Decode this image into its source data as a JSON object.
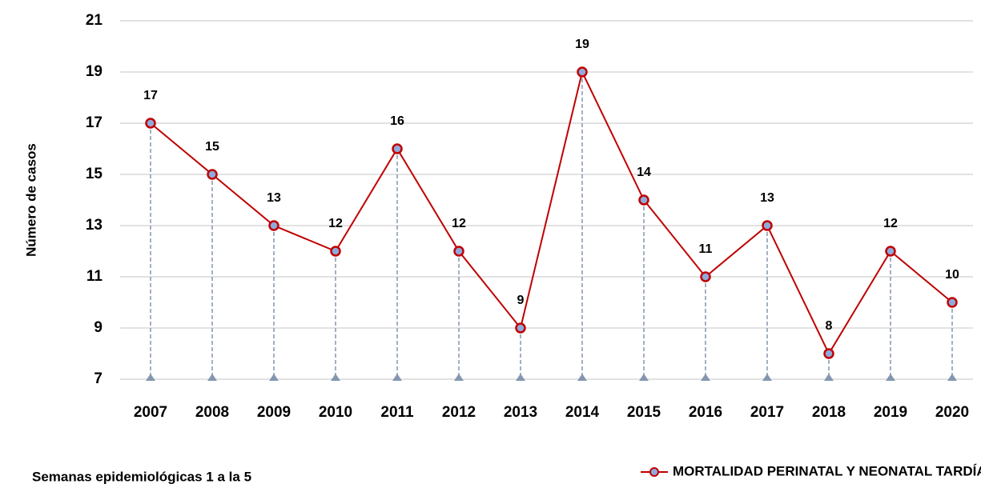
{
  "chart_data": {
    "type": "line",
    "ylabel": "Número de casos",
    "note": "Semanas epidemiológicas 1 a la 5",
    "categories": [
      "2007",
      "2008",
      "2009",
      "2010",
      "2011",
      "2012",
      "2013",
      "2014",
      "2015",
      "2016",
      "2017",
      "2018",
      "2019",
      "2020"
    ],
    "series": [
      {
        "name": "MORTALIDAD PERINATAL Y NEONATAL TARDÍA",
        "color": "#c00000",
        "marker_color": "#8eaadb",
        "values": [
          17,
          15,
          13,
          12,
          16,
          12,
          9,
          19,
          14,
          11,
          13,
          8,
          12,
          10
        ]
      }
    ],
    "ylim": [
      7,
      21
    ],
    "yticks": [
      7,
      9,
      11,
      13,
      15,
      17,
      19,
      21
    ],
    "grid": true,
    "drop_lines": true,
    "legend": "bottom-right"
  }
}
